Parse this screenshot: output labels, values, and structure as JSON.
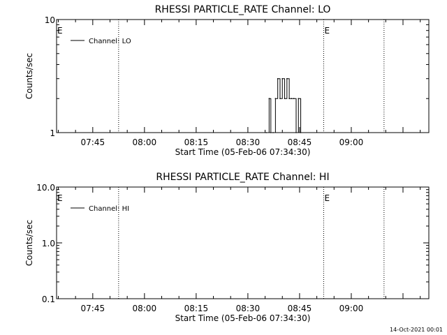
{
  "chart_data": [
    {
      "type": "line",
      "title": "RHESSI PARTICLE_RATE Channel: LO",
      "xlabel": "Start Time (05-Feb-06 07:34:30)",
      "ylabel": "Counts/sec",
      "yscale": "log",
      "ylim": [
        1,
        10
      ],
      "ytick_labels": [
        "1",
        "10"
      ],
      "xlim": [
        "07:34:30",
        "09:22:30"
      ],
      "xtick_labels": [
        "07:45",
        "08:00",
        "08:15",
        "08:30",
        "08:45",
        "09:00"
      ],
      "grid": false,
      "legend_position": "top-left",
      "series": [
        {
          "name": "Channel: LO",
          "x": [
            "08:35:20",
            "08:36:10",
            "08:36:40",
            "08:37:20",
            "08:38:00",
            "08:38:40",
            "08:39:20",
            "08:40:00",
            "08:40:40",
            "08:41:20",
            "08:42:00",
            "08:42:40",
            "08:43:20",
            "08:44:00",
            "08:44:40",
            "08:45:20"
          ],
          "y": [
            1,
            2,
            1,
            1,
            2,
            3,
            2,
            3,
            2,
            3,
            2,
            2,
            2,
            1,
            2,
            1
          ]
        }
      ],
      "markers": [
        {
          "label": "E",
          "x": "07:34:30",
          "style": "letter"
        },
        {
          "label": "",
          "x": "07:52:30",
          "style": "dotted"
        },
        {
          "label": "E",
          "x": "08:52:00",
          "style": "dotted"
        },
        {
          "label": "",
          "x": "09:09:30",
          "style": "dotted"
        }
      ]
    },
    {
      "type": "line",
      "title": "RHESSI PARTICLE_RATE Channel: HI",
      "xlabel": "Start Time (05-Feb-06 07:34:30)",
      "ylabel": "Counts/sec",
      "yscale": "log",
      "ylim": [
        0.1,
        10
      ],
      "ytick_labels": [
        "0.1",
        "1.0",
        "10.0"
      ],
      "xlim": [
        "07:34:30",
        "09:22:30"
      ],
      "xtick_labels": [
        "07:45",
        "08:00",
        "08:15",
        "08:30",
        "08:45",
        "09:00"
      ],
      "grid": false,
      "legend_position": "top-left",
      "series": [
        {
          "name": "Channel: HI",
          "x": [],
          "y": []
        }
      ],
      "markers": [
        {
          "label": "E",
          "x": "07:34:30",
          "style": "letter"
        },
        {
          "label": "",
          "x": "07:52:30",
          "style": "dotted"
        },
        {
          "label": "E",
          "x": "08:52:00",
          "style": "dotted"
        },
        {
          "label": "",
          "x": "09:09:30",
          "style": "dotted"
        }
      ]
    }
  ],
  "footer": {
    "timestamp": "14-Oct-2021 00:01"
  }
}
